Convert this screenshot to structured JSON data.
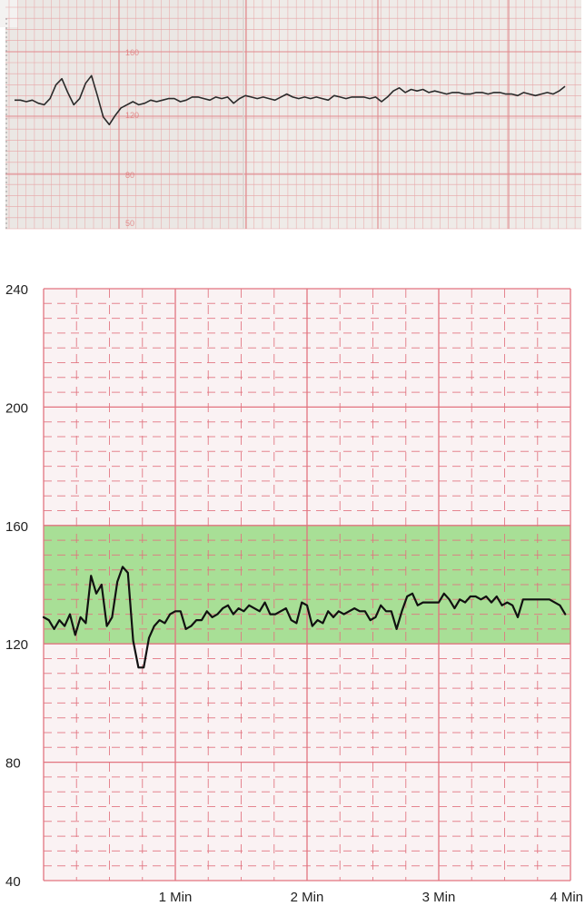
{
  "paper_strip": {
    "printed_labels": [
      "160",
      "120",
      "80",
      "50"
    ],
    "trace": [
      129,
      129,
      128,
      129,
      127,
      126,
      130,
      139,
      143,
      134,
      126,
      130,
      140,
      145,
      132,
      118,
      113,
      119,
      124,
      126,
      128,
      126,
      127,
      129,
      128,
      129,
      130,
      130,
      128,
      129,
      131,
      131,
      130,
      129,
      131,
      130,
      131,
      127,
      130,
      132,
      131,
      130,
      131,
      130,
      129,
      131,
      133,
      131,
      130,
      131,
      130,
      131,
      130,
      129,
      132,
      131,
      130,
      131,
      131,
      131,
      130,
      131,
      128,
      131,
      135,
      137,
      134,
      136,
      135,
      136,
      134,
      135,
      134,
      133,
      134,
      134,
      133,
      133,
      134,
      134,
      133,
      134,
      134,
      133,
      133,
      132,
      134,
      133,
      132,
      133,
      134,
      133,
      135,
      138
    ]
  },
  "chart_data": {
    "type": "line",
    "title": "",
    "xlabel": "",
    "ylabel": "",
    "y_ticks": [
      "240",
      "200",
      "160",
      "120",
      "80",
      "40"
    ],
    "x_ticks": [
      "1 Min",
      "2 Min",
      "3 Min",
      "4 Min"
    ],
    "ylim": [
      40,
      240
    ],
    "xlim_minutes": [
      0,
      4
    ],
    "normal_band": [
      120,
      160
    ],
    "grid": true,
    "series": [
      {
        "x": [
          0,
          0.04,
          0.08,
          0.12,
          0.16,
          0.2,
          0.24,
          0.28,
          0.32,
          0.36,
          0.4,
          0.44,
          0.48,
          0.52,
          0.56,
          0.6,
          0.64,
          0.68,
          0.72,
          0.76,
          0.8,
          0.84,
          0.88,
          0.92,
          0.96,
          1.0,
          1.04,
          1.08,
          1.12,
          1.16,
          1.2,
          1.24,
          1.28,
          1.32,
          1.36,
          1.4,
          1.44,
          1.48,
          1.52,
          1.56,
          1.6,
          1.64,
          1.68,
          1.72,
          1.76,
          1.8,
          1.84,
          1.88,
          1.92,
          1.96,
          2.0,
          2.04,
          2.08,
          2.12,
          2.16,
          2.2,
          2.24,
          2.28,
          2.32,
          2.36,
          2.4,
          2.44,
          2.48,
          2.52,
          2.56,
          2.6,
          2.64,
          2.68,
          2.72,
          2.76,
          2.8,
          2.84,
          2.88,
          2.92,
          2.96,
          3.0,
          3.04,
          3.08,
          3.12,
          3.16,
          3.2,
          3.24,
          3.28,
          3.32,
          3.36,
          3.4,
          3.44,
          3.48,
          3.52,
          3.56,
          3.6,
          3.64,
          3.68,
          3.72,
          3.76,
          3.8,
          3.84,
          3.88,
          3.92,
          3.96
        ],
        "y": [
          129,
          128,
          125,
          128,
          126,
          130,
          123,
          129,
          127,
          143,
          137,
          140,
          126,
          129,
          141,
          146,
          144,
          121,
          112,
          112,
          122,
          126,
          128,
          127,
          130,
          131,
          131,
          125,
          126,
          128,
          128,
          131,
          129,
          130,
          132,
          133,
          130,
          132,
          131,
          133,
          132,
          131,
          134,
          130,
          130,
          131,
          132,
          128,
          127,
          134,
          133,
          126,
          128,
          127,
          131,
          129,
          131,
          130,
          131,
          132,
          131,
          131,
          128,
          129,
          133,
          131,
          131,
          125,
          131,
          136,
          137,
          133,
          134,
          134,
          134,
          134,
          137,
          135,
          132,
          135,
          134,
          136,
          136,
          135,
          136,
          134,
          136,
          133,
          134,
          133,
          129,
          135,
          135,
          135,
          135,
          135,
          135,
          134,
          133,
          130
        ]
      }
    ]
  },
  "colors": {
    "background": "#ffffff",
    "grid": "#e2737f",
    "band": "#a8df96",
    "chart_bg": "#faf2f3",
    "trace": "#111111"
  }
}
